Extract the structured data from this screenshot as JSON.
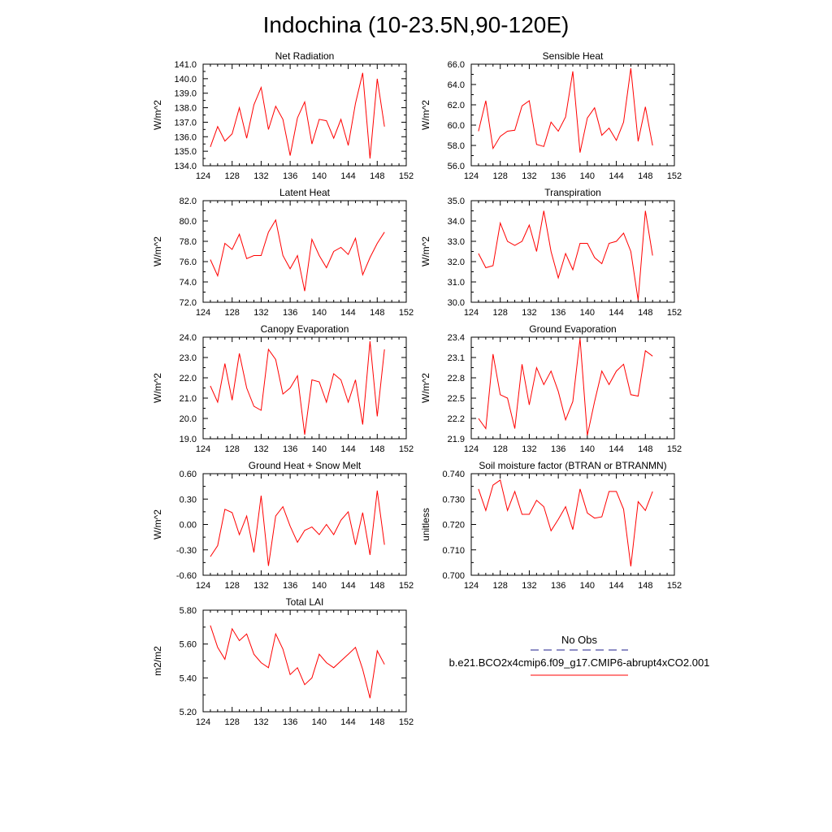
{
  "figure_title": "Indochina (10-23.5N,90-120E)",
  "legend": {
    "obs_label": "No Obs",
    "model_label": "b.e21.BCO2x4cmip6.f09_g17.CMIP6-abrupt4xCO2.001",
    "obs_color": "#1c1c8c",
    "model_color": "#ff0000"
  },
  "chart_data": [
    {
      "type": "line",
      "title": "Net Radiation",
      "ylabel": "W/m^2",
      "xlim": [
        124,
        152
      ],
      "ylim": [
        134.0,
        141.0
      ],
      "xticks": [
        "124",
        "128",
        "132",
        "136",
        "140",
        "144",
        "148",
        "152"
      ],
      "yticks": [
        "141.0",
        "140.0",
        "139.0",
        "138.0",
        "137.0",
        "136.0",
        "135.0",
        "134.0"
      ],
      "x": [
        125,
        126,
        127,
        128,
        129,
        130,
        131,
        132,
        133,
        134,
        135,
        136,
        137,
        138,
        139,
        140,
        141,
        142,
        143,
        144,
        145,
        146,
        147,
        148,
        149
      ],
      "series": [
        {
          "name": "b.e21.BCO2x4cmip6.f09_g17.CMIP6-abrupt4xCO2.001",
          "values": [
            135.3,
            136.7,
            135.7,
            136.2,
            138.0,
            135.9,
            138.2,
            139.4,
            136.5,
            138.1,
            137.2,
            134.7,
            137.3,
            138.4,
            135.5,
            137.2,
            137.1,
            135.9,
            137.2,
            135.4,
            138.3,
            140.4,
            134.5,
            140.0,
            136.7
          ]
        }
      ]
    },
    {
      "type": "line",
      "title": "Sensible Heat",
      "ylabel": "W/m^2",
      "xlim": [
        124,
        152
      ],
      "ylim": [
        56.0,
        66.0
      ],
      "xticks": [
        "124",
        "128",
        "132",
        "136",
        "140",
        "144",
        "148",
        "152"
      ],
      "yticks": [
        "66.0",
        "64.0",
        "62.0",
        "60.0",
        "58.0",
        "56.0"
      ],
      "x": [
        125,
        126,
        127,
        128,
        129,
        130,
        131,
        132,
        133,
        134,
        135,
        136,
        137,
        138,
        139,
        140,
        141,
        142,
        143,
        144,
        145,
        146,
        147,
        148,
        149
      ],
      "series": [
        {
          "name": "b.e21.BCO2x4cmip6.f09_g17.CMIP6-abrupt4xCO2.001",
          "values": [
            59.4,
            62.4,
            57.7,
            58.9,
            59.4,
            59.5,
            61.9,
            62.4,
            58.1,
            57.9,
            60.3,
            59.4,
            60.8,
            65.3,
            57.3,
            60.7,
            61.7,
            59.0,
            59.7,
            58.5,
            60.3,
            65.6,
            58.4,
            61.8,
            58.0
          ]
        }
      ]
    },
    {
      "type": "line",
      "title": "Latent Heat",
      "ylabel": "W/m^2",
      "xlim": [
        124,
        152
      ],
      "ylim": [
        72.0,
        82.0
      ],
      "xticks": [
        "124",
        "128",
        "132",
        "136",
        "140",
        "144",
        "148",
        "152"
      ],
      "yticks": [
        "82.0",
        "80.0",
        "78.0",
        "76.0",
        "74.0",
        "72.0"
      ],
      "x": [
        125,
        126,
        127,
        128,
        129,
        130,
        131,
        132,
        133,
        134,
        135,
        136,
        137,
        138,
        139,
        140,
        141,
        142,
        143,
        144,
        145,
        146,
        147,
        148,
        149
      ],
      "series": [
        {
          "name": "b.e21.BCO2x4cmip6.f09_g17.CMIP6-abrupt4xCO2.001",
          "values": [
            76.2,
            74.6,
            77.8,
            77.2,
            78.7,
            76.3,
            76.6,
            76.6,
            78.9,
            80.1,
            76.6,
            75.3,
            76.6,
            73.1,
            78.2,
            76.6,
            75.4,
            77.0,
            77.4,
            76.7,
            78.3,
            74.7,
            76.4,
            77.8,
            78.9
          ]
        }
      ]
    },
    {
      "type": "line",
      "title": "Transpiration",
      "ylabel": "W/m^2",
      "xlim": [
        124,
        152
      ],
      "ylim": [
        30.0,
        35.0
      ],
      "xticks": [
        "124",
        "128",
        "132",
        "136",
        "140",
        "144",
        "148",
        "152"
      ],
      "yticks": [
        "35.0",
        "34.0",
        "33.0",
        "32.0",
        "31.0",
        "30.0"
      ],
      "x": [
        125,
        126,
        127,
        128,
        129,
        130,
        131,
        132,
        133,
        134,
        135,
        136,
        137,
        138,
        139,
        140,
        141,
        142,
        143,
        144,
        145,
        146,
        147,
        148,
        149
      ],
      "series": [
        {
          "name": "b.e21.BCO2x4cmip6.f09_g17.CMIP6-abrupt4xCO2.001",
          "values": [
            32.4,
            31.7,
            31.8,
            33.9,
            33.0,
            32.8,
            33.0,
            33.8,
            32.5,
            34.5,
            32.5,
            31.2,
            32.4,
            31.6,
            32.9,
            32.9,
            32.2,
            31.9,
            32.9,
            33.0,
            33.4,
            32.5,
            30.1,
            34.5,
            32.3
          ]
        }
      ]
    },
    {
      "type": "line",
      "title": "Canopy Evaporation",
      "ylabel": "W/m^2",
      "xlim": [
        124,
        152
      ],
      "ylim": [
        19.0,
        24.0
      ],
      "xticks": [
        "124",
        "128",
        "132",
        "136",
        "140",
        "144",
        "148",
        "152"
      ],
      "yticks": [
        "24.0",
        "23.0",
        "22.0",
        "21.0",
        "20.0",
        "19.0"
      ],
      "x": [
        125,
        126,
        127,
        128,
        129,
        130,
        131,
        132,
        133,
        134,
        135,
        136,
        137,
        138,
        139,
        140,
        141,
        142,
        143,
        144,
        145,
        146,
        147,
        148,
        149
      ],
      "series": [
        {
          "name": "b.e21.BCO2x4cmip6.f09_g17.CMIP6-abrupt4xCO2.001",
          "values": [
            21.6,
            20.8,
            22.7,
            20.9,
            23.2,
            21.5,
            20.6,
            20.4,
            23.4,
            22.9,
            21.2,
            21.5,
            22.1,
            19.2,
            21.9,
            21.8,
            20.8,
            22.2,
            21.9,
            20.8,
            21.9,
            19.7,
            23.8,
            20.1,
            23.4
          ]
        }
      ]
    },
    {
      "type": "line",
      "title": "Ground Evaporation",
      "ylabel": "W/m^2",
      "xlim": [
        124,
        152
      ],
      "ylim": [
        21.9,
        23.4
      ],
      "xticks": [
        "124",
        "128",
        "132",
        "136",
        "140",
        "144",
        "148",
        "152"
      ],
      "yticks": [
        "23.4",
        "23.1",
        "22.8",
        "22.5",
        "22.2",
        "21.9"
      ],
      "x": [
        125,
        126,
        127,
        128,
        129,
        130,
        131,
        132,
        133,
        134,
        135,
        136,
        137,
        138,
        139,
        140,
        141,
        142,
        143,
        144,
        145,
        146,
        147,
        148,
        149
      ],
      "series": [
        {
          "name": "b.e21.BCO2x4cmip6.f09_g17.CMIP6-abrupt4xCO2.001",
          "values": [
            22.2,
            22.05,
            23.15,
            22.55,
            22.5,
            22.05,
            23.0,
            22.4,
            22.95,
            22.7,
            22.9,
            22.6,
            22.18,
            22.45,
            23.38,
            21.95,
            22.45,
            22.9,
            22.7,
            22.9,
            23.0,
            22.55,
            22.53,
            23.2,
            23.12
          ]
        }
      ]
    },
    {
      "type": "line",
      "title": "Ground Heat + Snow Melt",
      "ylabel": "W/m^2",
      "xlim": [
        124,
        152
      ],
      "ylim": [
        -0.6,
        0.6
      ],
      "xticks": [
        "124",
        "128",
        "132",
        "136",
        "140",
        "144",
        "148",
        "152"
      ],
      "yticks": [
        "0.60",
        "0.30",
        "0.00",
        "-0.30",
        "-0.60"
      ],
      "x": [
        125,
        126,
        127,
        128,
        129,
        130,
        131,
        132,
        133,
        134,
        135,
        136,
        137,
        138,
        139,
        140,
        141,
        142,
        143,
        144,
        145,
        146,
        147,
        148,
        149
      ],
      "series": [
        {
          "name": "b.e21.BCO2x4cmip6.f09_g17.CMIP6-abrupt4xCO2.001",
          "values": [
            -0.38,
            -0.25,
            0.18,
            0.14,
            -0.12,
            0.1,
            -0.33,
            0.34,
            -0.49,
            0.1,
            0.21,
            -0.02,
            -0.21,
            -0.07,
            -0.03,
            -0.12,
            0.0,
            -0.12,
            0.05,
            0.15,
            -0.24,
            0.14,
            -0.36,
            0.4,
            -0.24
          ]
        }
      ]
    },
    {
      "type": "line",
      "title": "Soil moisture factor (BTRAN or BTRANMN)",
      "ylabel": "unitless",
      "xlim": [
        124,
        152
      ],
      "ylim": [
        0.7,
        0.74
      ],
      "xticks": [
        "124",
        "128",
        "132",
        "136",
        "140",
        "144",
        "148",
        "152"
      ],
      "yticks": [
        "0.740",
        "0.730",
        "0.720",
        "0.710",
        "0.700"
      ],
      "x": [
        125,
        126,
        127,
        128,
        129,
        130,
        131,
        132,
        133,
        134,
        135,
        136,
        137,
        138,
        139,
        140,
        141,
        142,
        143,
        144,
        145,
        146,
        147,
        148,
        149
      ],
      "series": [
        {
          "name": "b.e21.BCO2x4cmip6.f09_g17.CMIP6-abrupt4xCO2.001",
          "values": [
            0.734,
            0.7255,
            0.7355,
            0.7375,
            0.7255,
            0.733,
            0.724,
            0.724,
            0.7295,
            0.727,
            0.7175,
            0.722,
            0.727,
            0.718,
            0.734,
            0.7245,
            0.7225,
            0.723,
            0.733,
            0.733,
            0.726,
            0.7035,
            0.729,
            0.7255,
            0.733
          ]
        }
      ]
    },
    {
      "type": "line",
      "title": "Total LAI",
      "ylabel": "m2/m2",
      "xlim": [
        124,
        152
      ],
      "ylim": [
        5.2,
        5.8
      ],
      "xticks": [
        "124",
        "128",
        "132",
        "136",
        "140",
        "144",
        "148",
        "152"
      ],
      "yticks": [
        "5.80",
        "5.60",
        "5.40",
        "5.20"
      ],
      "x": [
        125,
        126,
        127,
        128,
        129,
        130,
        131,
        132,
        133,
        134,
        135,
        136,
        137,
        138,
        139,
        140,
        141,
        142,
        143,
        144,
        145,
        146,
        147,
        148,
        149
      ],
      "series": [
        {
          "name": "b.e21.BCO2x4cmip6.f09_g17.CMIP6-abrupt4xCO2.001",
          "values": [
            5.71,
            5.58,
            5.51,
            5.69,
            5.62,
            5.66,
            5.54,
            5.49,
            5.46,
            5.66,
            5.57,
            5.42,
            5.46,
            5.36,
            5.4,
            5.54,
            5.49,
            5.46,
            5.5,
            5.54,
            5.58,
            5.45,
            5.28,
            5.56,
            5.48
          ]
        }
      ]
    }
  ]
}
